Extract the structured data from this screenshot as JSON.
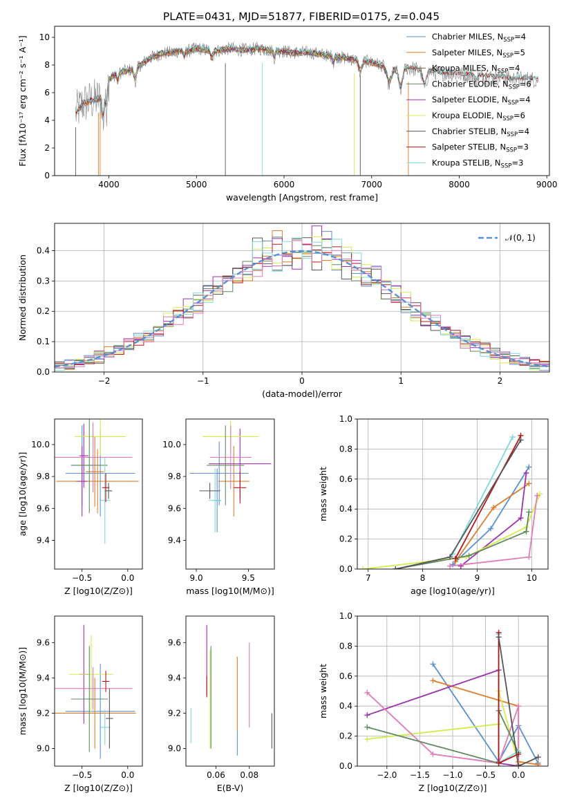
{
  "figure_title": "PLATE=0431, MJD=51877, FIBERID=0175, z=0.045",
  "colors": {
    "chabrier_miles": "#5a8fd6",
    "salpeter_miles": "#e07b28",
    "kroupa_miles": "#8c5a3c",
    "chabrier_elodie": "#5f8a5f",
    "salpeter_elodie": "#9c2fae",
    "kroupa_elodie": "#d6ea4c",
    "chabrier_stelib": "#555555",
    "salpeter_stelib": "#b01818",
    "kroupa_stelib": "#7fd8d8",
    "pink": "#e07ab8",
    "gray_data": "#808080",
    "normal": "#5a8fd6"
  },
  "chart_data": [
    {
      "id": "spectrum",
      "type": "line",
      "title": "",
      "xlabel": "wavelength [Angstrom, rest frame]",
      "ylabel": "Flux [fλ10⁻¹⁷ erg cm⁻² s⁻¹ A⁻¹]",
      "xlim": [
        3380,
        9030
      ],
      "ylim": [
        0,
        10.8
      ],
      "xticks": [
        4000,
        5000,
        6000,
        7000,
        8000,
        9000
      ],
      "yticks": [
        0,
        2,
        4,
        6,
        8,
        10
      ],
      "grid": false,
      "legend_position": "upper-right",
      "legend": [
        "Chabrier MILES, NSSP=4",
        "Salpeter MILES, NSSP=5",
        "Kroupa MILES, NSSP=4",
        "Chabrier ELODIE, NSSP=6",
        "Salpeter ELODIE, NSSP=4",
        "Kroupa ELODIE, NSSP=6",
        "Chabrier STELIB, NSSP=4",
        "Salpeter STELIB, NSSP=3",
        "Kroupa STELIB, NSSP=3"
      ],
      "continuum": {
        "x": [
          3620,
          3700,
          3800,
          3900,
          4000,
          4100,
          4200,
          4300,
          4400,
          4500,
          4600,
          4700,
          4800,
          4900,
          5000,
          5100,
          5200,
          5300,
          5400,
          5500,
          5600,
          5700,
          5800,
          5900,
          6000,
          6100,
          6200,
          6300,
          6400,
          6500,
          6600,
          6700,
          6800,
          6900,
          7000,
          7100,
          7200,
          7300,
          7400,
          7500,
          7600,
          7700,
          7800,
          7900,
          8000,
          8100,
          8200,
          8300,
          8400,
          8500,
          8600,
          8700,
          8800,
          8900
        ],
        "y": [
          4.5,
          5.2,
          5.4,
          5.6,
          7.0,
          7.4,
          7.6,
          7.7,
          8.2,
          8.6,
          8.8,
          8.9,
          9.0,
          9.0,
          9.2,
          9.1,
          9.0,
          9.1,
          9.2,
          9.1,
          9.1,
          9.2,
          9.1,
          9.0,
          9.0,
          8.9,
          8.9,
          8.9,
          8.8,
          8.7,
          8.6,
          8.5,
          8.4,
          8.3,
          8.2,
          8.0,
          7.9,
          7.7,
          7.8,
          7.7,
          7.6,
          7.5,
          7.4,
          7.4,
          7.3,
          7.3,
          7.2,
          7.2,
          7.1,
          7.1,
          7.0,
          7.0,
          7.0,
          6.9
        ]
      }
    },
    {
      "id": "residuals",
      "type": "bar",
      "title": "",
      "xlabel": "(data-model)/error",
      "ylabel": "Normed distribution",
      "xlim": [
        -2.5,
        2.5
      ],
      "ylim": [
        0,
        0.49
      ],
      "xticks": [
        -2,
        -1,
        0,
        1,
        2
      ],
      "yticks": [
        0.0,
        0.1,
        0.2,
        0.3,
        0.4
      ],
      "grid": true,
      "bin_width": 0.1,
      "legend_position": "upper-right",
      "legend": [
        "𝒩(0, 1)"
      ]
    },
    {
      "id": "age_vs_Z",
      "type": "scatter",
      "xlabel": "Z [log10(Z/Z⊙)]",
      "ylabel": "age  [log10(age/yr)]",
      "xlim": [
        -0.8,
        0.16
      ],
      "ylim": [
        9.22,
        10.16
      ],
      "xticks": [
        -0.5,
        0.0
      ],
      "yticks": [
        9.4,
        9.6,
        9.8,
        10.0
      ],
      "points": [
        {
          "x": -0.5,
          "y": 9.87,
          "xerr": 0.12,
          "yerr": 0.25,
          "c": "chabrier_miles"
        },
        {
          "x": -0.3,
          "y": 9.82,
          "xerr": 0.38,
          "yerr": 0.27,
          "c": "chabrier_miles"
        },
        {
          "x": -0.33,
          "y": 9.77,
          "xerr": 0.45,
          "yerr": 0.2,
          "c": "salpeter_miles"
        },
        {
          "x": -0.36,
          "y": 9.83,
          "xerr": 0.1,
          "yerr": 0.22,
          "c": "salpeter_miles"
        },
        {
          "x": -0.5,
          "y": 9.77,
          "xerr": 0.06,
          "yerr": 0.22,
          "c": "salpeter_elodie"
        },
        {
          "x": -0.48,
          "y": 9.93,
          "xerr": 0.05,
          "yerr": 0.2,
          "c": "salpeter_elodie"
        },
        {
          "x": -0.3,
          "y": 10.05,
          "xerr": 0.28,
          "yerr": 0.12,
          "c": "kroupa_elodie"
        },
        {
          "x": -0.38,
          "y": 9.92,
          "xerr": 0.43,
          "yerr": 0.22,
          "c": "pink"
        },
        {
          "x": -0.42,
          "y": 9.87,
          "xerr": 0.2,
          "yerr": 0.3,
          "c": "chabrier_elodie"
        },
        {
          "x": -0.25,
          "y": 9.65,
          "xerr": 0.06,
          "yerr": 0.27,
          "c": "kroupa_stelib"
        },
        {
          "x": -0.24,
          "y": 9.73,
          "xerr": 0.04,
          "yerr": 0.09,
          "c": "salpeter_stelib"
        },
        {
          "x": -0.21,
          "y": 9.71,
          "xerr": 0.04,
          "yerr": 0.05,
          "c": "chabrier_stelib"
        }
      ]
    },
    {
      "id": "age_vs_mass",
      "type": "scatter",
      "xlabel": "mass [log10(M/M⊙)]",
      "ylabel": "",
      "xlim": [
        8.9,
        9.75
      ],
      "ylim": [
        9.22,
        10.16
      ],
      "xticks": [
        9.0,
        9.5
      ],
      "yticks": [
        9.4,
        9.6,
        9.8,
        10.0
      ],
      "points": [
        {
          "x": 9.22,
          "y": 9.82,
          "xerr": 0.28,
          "yerr": 0.2,
          "c": "chabrier_miles"
        },
        {
          "x": 9.2,
          "y": 9.65,
          "xerr": 0.04,
          "yerr": 0.2,
          "c": "chabrier_miles"
        },
        {
          "x": 9.36,
          "y": 9.77,
          "xerr": 0.15,
          "yerr": 0.22,
          "c": "salpeter_miles"
        },
        {
          "x": 9.42,
          "y": 9.88,
          "xerr": 0.3,
          "yerr": 0.22,
          "c": "salpeter_elodie"
        },
        {
          "x": 9.33,
          "y": 10.05,
          "xerr": 0.27,
          "yerr": 0.1,
          "c": "kroupa_elodie"
        },
        {
          "x": 9.33,
          "y": 9.92,
          "xerr": 0.2,
          "yerr": 0.2,
          "c": "pink"
        },
        {
          "x": 9.28,
          "y": 9.87,
          "xerr": 0.18,
          "yerr": 0.25,
          "c": "chabrier_elodie"
        },
        {
          "x": 9.18,
          "y": 9.65,
          "xerr": 0.06,
          "yerr": 0.2,
          "c": "kroupa_stelib"
        },
        {
          "x": 9.42,
          "y": 9.73,
          "xerr": 0.06,
          "yerr": 0.1,
          "c": "salpeter_stelib"
        },
        {
          "x": 9.13,
          "y": 9.71,
          "xerr": 0.1,
          "yerr": 0.05,
          "c": "chabrier_stelib"
        }
      ]
    },
    {
      "id": "massweight_vs_age",
      "type": "line",
      "xlabel": "age  [log10(age/yr)]",
      "ylabel": "mass weight",
      "xlim": [
        6.8,
        10.3
      ],
      "ylim": [
        0,
        1
      ],
      "xticks": [
        7,
        8,
        9,
        10
      ],
      "yticks": [
        0.0,
        0.2,
        0.4,
        0.6,
        0.8,
        1.0
      ],
      "grid": true,
      "series": [
        {
          "c": "chabrier_miles",
          "x": [
            8.55,
            9.25,
            9.95
          ],
          "y": [
            0.03,
            0.27,
            0.68
          ]
        },
        {
          "c": "salpeter_miles",
          "x": [
            8.6,
            9.3,
            9.95
          ],
          "y": [
            0.05,
            0.41,
            0.57
          ]
        },
        {
          "c": "salpeter_elodie",
          "x": [
            8.7,
            9.8,
            9.9
          ],
          "y": [
            0.02,
            0.34,
            0.64
          ]
        },
        {
          "c": "kroupa_elodie",
          "x": [
            6.9,
            8.8,
            9.9,
            10.15
          ],
          "y": [
            0.0,
            0.08,
            0.28,
            0.5
          ]
        },
        {
          "c": "pink",
          "x": [
            8.5,
            9.95,
            10.1
          ],
          "y": [
            0.02,
            0.08,
            0.49
          ]
        },
        {
          "c": "chabrier_elodie",
          "x": [
            7.5,
            8.85,
            9.9,
            9.95
          ],
          "y": [
            0.0,
            0.09,
            0.25,
            0.38
          ]
        },
        {
          "c": "kroupa_stelib",
          "x": [
            8.55,
            9.65
          ],
          "y": [
            0.1,
            0.88
          ]
        },
        {
          "c": "salpeter_stelib",
          "x": [
            8.6,
            9.8
          ],
          "y": [
            0.07,
            0.89
          ]
        },
        {
          "c": "chabrier_stelib",
          "x": [
            7.5,
            8.5,
            9.8
          ],
          "y": [
            0.0,
            0.08,
            0.86
          ]
        }
      ]
    },
    {
      "id": "mass_vs_Z",
      "type": "scatter",
      "xlabel": "Z [log10(Z/Z⊙)]",
      "ylabel": "mass [log10(M/M⊙)]",
      "xlim": [
        -0.8,
        0.16
      ],
      "ylim": [
        8.9,
        9.75
      ],
      "xticks": [
        -0.5,
        0.0
      ],
      "yticks": [
        9.0,
        9.2,
        9.4,
        9.6
      ],
      "points": [
        {
          "x": -0.3,
          "y": 9.21,
          "xerr": 0.38,
          "yerr": 0.27,
          "c": "chabrier_miles"
        },
        {
          "x": -0.36,
          "y": 9.2,
          "xerr": 0.45,
          "yerr": 0.2,
          "c": "salpeter_miles"
        },
        {
          "x": -0.48,
          "y": 9.42,
          "xerr": 0.05,
          "yerr": 0.28,
          "c": "salpeter_elodie"
        },
        {
          "x": -0.4,
          "y": 9.42,
          "xerr": 0.24,
          "yerr": 0.22,
          "c": "kroupa_elodie"
        },
        {
          "x": -0.38,
          "y": 9.34,
          "xerr": 0.43,
          "yerr": 0.12,
          "c": "pink"
        },
        {
          "x": -0.42,
          "y": 9.28,
          "xerr": 0.2,
          "yerr": 0.3,
          "c": "chabrier_elodie"
        },
        {
          "x": -0.25,
          "y": 9.12,
          "xerr": 0.06,
          "yerr": 0.1,
          "c": "kroupa_stelib"
        },
        {
          "x": -0.24,
          "y": 9.38,
          "xerr": 0.04,
          "yerr": 0.06,
          "c": "salpeter_stelib"
        },
        {
          "x": -0.2,
          "y": 9.17,
          "xerr": 0.04,
          "yerr": 0.17,
          "c": "chabrier_stelib"
        }
      ]
    },
    {
      "id": "mass_vs_ebv",
      "type": "scatter",
      "xlabel": "E(B-V)",
      "ylabel": "",
      "xlim": [
        0.042,
        0.095
      ],
      "ylim": [
        8.9,
        9.75
      ],
      "xticks": [
        0.06,
        0.08
      ],
      "yticks": [
        9.0,
        9.2,
        9.4,
        9.6
      ],
      "points": [
        {
          "x": 0.0545,
          "y": 9.5,
          "xerr": 0,
          "yerr": 0.2,
          "c": "salpeter_elodie"
        },
        {
          "x": 0.0545,
          "y": 9.35,
          "xerr": 0,
          "yerr": 0.06,
          "c": "salpeter_stelib"
        },
        {
          "x": 0.0565,
          "y": 9.28,
          "xerr": 0,
          "yerr": 0.28,
          "c": "kroupa_elodie"
        },
        {
          "x": 0.057,
          "y": 9.29,
          "xerr": 0,
          "yerr": 0.29,
          "c": "chabrier_elodie"
        },
        {
          "x": 0.045,
          "y": 9.13,
          "xerr": 0,
          "yerr": 0.1,
          "c": "kroupa_stelib"
        },
        {
          "x": 0.0728,
          "y": 9.31,
          "xerr": 0,
          "yerr": 0.21,
          "c": "salpeter_miles"
        },
        {
          "x": 0.0728,
          "y": 9.03,
          "xerr": 0,
          "yerr": 0.07,
          "c": "chabrier_miles"
        },
        {
          "x": 0.08,
          "y": 9.36,
          "xerr": 0,
          "yerr": 0.24,
          "c": "pink"
        },
        {
          "x": 0.0935,
          "y": 9.1,
          "xerr": 0,
          "yerr": 0.1,
          "c": "chabrier_stelib"
        }
      ]
    },
    {
      "id": "massweight_vs_Z",
      "type": "line",
      "xlabel": "Z [log10(Z/Z⊙)]",
      "ylabel": "mass weight",
      "xlim": [
        -2.45,
        0.45
      ],
      "ylim": [
        0,
        1
      ],
      "xticks": [
        -2.0,
        -1.5,
        -1.0,
        -0.5,
        0.0
      ],
      "yticks": [
        0.0,
        0.2,
        0.4,
        0.6,
        0.8,
        1.0
      ],
      "grid": true,
      "series": [
        {
          "c": "chabrier_miles",
          "x": [
            -1.3,
            -0.3,
            0.0,
            0.3
          ],
          "y": [
            0.68,
            0.03,
            0.27,
            0.02
          ]
        },
        {
          "c": "salpeter_miles",
          "x": [
            -1.3,
            0.0,
            0.0,
            0.3
          ],
          "y": [
            0.57,
            0.4,
            0.03,
            0.01
          ]
        },
        {
          "c": "salpeter_elodie",
          "x": [
            -2.3,
            -0.3,
            -0.3,
            0.0
          ],
          "y": [
            0.34,
            0.64,
            0.02,
            0.0
          ]
        },
        {
          "c": "kroupa_elodie",
          "x": [
            -2.3,
            -0.3,
            -0.3,
            0.0
          ],
          "y": [
            0.18,
            0.28,
            0.5,
            0.02
          ]
        },
        {
          "c": "pink",
          "x": [
            -2.3,
            -1.3,
            -0.3,
            0.0,
            0.0
          ],
          "y": [
            0.49,
            0.08,
            0.02,
            0.4,
            0.01
          ]
        },
        {
          "c": "chabrier_elodie",
          "x": [
            -2.3,
            -0.3,
            -0.3,
            0.0
          ],
          "y": [
            0.26,
            0.02,
            0.37,
            0.09
          ]
        },
        {
          "c": "kroupa_stelib",
          "x": [
            -0.3,
            -0.3,
            0.0
          ],
          "y": [
            0.88,
            0.02,
            0.1
          ]
        },
        {
          "c": "salpeter_stelib",
          "x": [
            -0.3,
            -0.3,
            0.0
          ],
          "y": [
            0.89,
            0.02,
            0.08
          ]
        },
        {
          "c": "chabrier_stelib",
          "x": [
            -0.3,
            0.0,
            0.3
          ],
          "y": [
            0.86,
            0.0,
            0.06
          ]
        }
      ]
    }
  ]
}
